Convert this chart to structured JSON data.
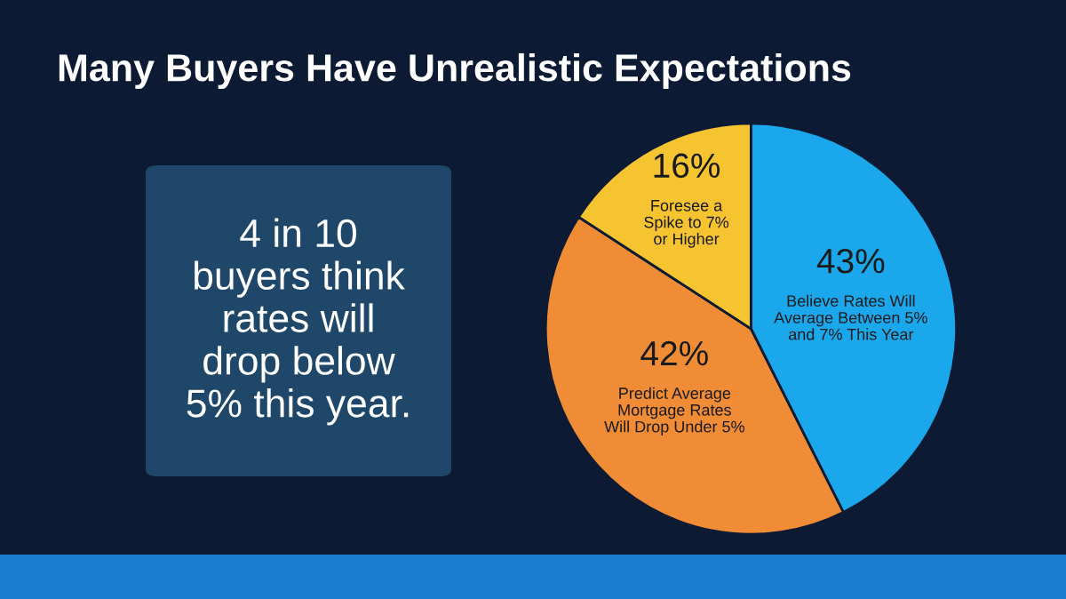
{
  "chart_data": {
    "type": "pie",
    "title": "Many Buyers Have Unrealistic Expectations",
    "categories": [
      "Believe Rates Will\nAverage Between 5%\nand 7% This Year",
      "Predict Average\nMortgage Rates\nWill Drop Under 5%",
      "Foresee a\nSpike to 7%\nor Higher"
    ],
    "values": [
      43,
      42,
      16
    ],
    "value_labels": [
      "43%",
      "42%",
      "16%"
    ],
    "colors": [
      "#1aa7ec",
      "#f08c35",
      "#f6c431"
    ],
    "annotations": [
      "4 in 10\nbuyers think\nrates will\ndrop below\n5% this year."
    ]
  }
}
